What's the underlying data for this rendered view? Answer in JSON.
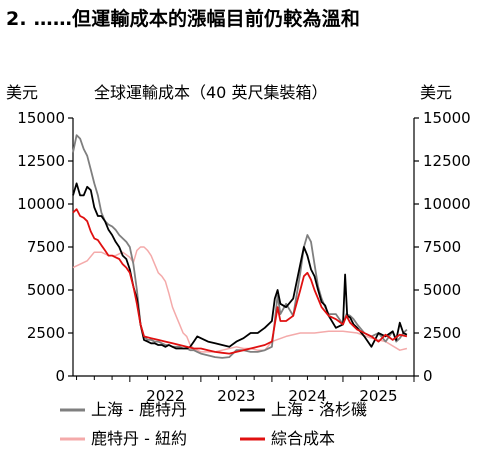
{
  "heading": "2. ……但運輸成本的漲幅目前仍較為溫和",
  "chart_data": {
    "type": "line",
    "title": "全球運輸成本（40 英尺集裝箱）",
    "y_unit_left": "美元",
    "y_unit_right": "美元",
    "ylim": [
      0,
      15000
    ],
    "y_ticks": [
      0,
      2500,
      5000,
      7500,
      10000,
      12500,
      15000
    ],
    "y_tick_labels": [
      "0",
      "2500",
      "5000",
      "7500",
      "10000",
      "12500",
      "15000"
    ],
    "xlim": [
      2021.2,
      2026.0
    ],
    "x_tick_labels": [
      "2022",
      "2023",
      "2024",
      "2025"
    ],
    "x_label_positions": [
      2022.5,
      2023.5,
      2024.5,
      2025.5
    ],
    "grid": false,
    "legend_position": "bottom",
    "series": [
      {
        "name": "上海 - 鹿特丹",
        "color": "#7f7f7f",
        "x": [
          2021.2,
          2021.25,
          2021.3,
          2021.35,
          2021.4,
          2021.45,
          2021.5,
          2021.55,
          2021.6,
          2021.65,
          2021.7,
          2021.75,
          2021.8,
          2021.85,
          2021.9,
          2021.95,
          2022.0,
          2022.05,
          2022.1,
          2022.15,
          2022.2,
          2022.25,
          2022.3,
          2022.35,
          2022.4,
          2022.45,
          2022.5,
          2022.55,
          2022.6,
          2022.65,
          2022.7,
          2022.75,
          2022.8,
          2022.85,
          2022.9,
          2022.95,
          2023.0,
          2023.1,
          2023.2,
          2023.3,
          2023.4,
          2023.5,
          2023.6,
          2023.7,
          2023.8,
          2023.9,
          2024.0,
          2024.04,
          2024.08,
          2024.12,
          2024.2,
          2024.3,
          2024.4,
          2024.45,
          2024.5,
          2024.55,
          2024.6,
          2024.65,
          2024.7,
          2024.75,
          2024.8,
          2024.9,
          2025.0,
          2025.05,
          2025.1,
          2025.15,
          2025.2,
          2025.3,
          2025.4,
          2025.5,
          2025.6,
          2025.7,
          2025.75,
          2025.8,
          2025.85,
          2025.9
        ],
        "y": [
          13000,
          14000,
          13800,
          13200,
          12800,
          12000,
          11200,
          10500,
          9500,
          9000,
          8800,
          8700,
          8500,
          8200,
          8000,
          7800,
          7500,
          6500,
          5000,
          3000,
          2300,
          2100,
          2100,
          2000,
          2000,
          1900,
          1800,
          1800,
          1700,
          1700,
          1700,
          1600,
          1600,
          1500,
          1500,
          1400,
          1300,
          1200,
          1100,
          1050,
          1100,
          1500,
          1500,
          1400,
          1400,
          1500,
          1700,
          3200,
          4700,
          3600,
          4200,
          3500,
          6000,
          7500,
          8200,
          7800,
          6500,
          5200,
          4500,
          4000,
          3600,
          3600,
          3000,
          3600,
          3500,
          3300,
          3000,
          2500,
          2300,
          2500,
          2000,
          2600,
          2000,
          2200,
          2500,
          2700
        ]
      },
      {
        "name": "上海 - 洛杉磯",
        "color": "#000000",
        "x": [
          2021.2,
          2021.25,
          2021.3,
          2021.35,
          2021.4,
          2021.45,
          2021.5,
          2021.55,
          2021.6,
          2021.65,
          2021.7,
          2021.75,
          2021.8,
          2021.85,
          2021.9,
          2021.95,
          2022.0,
          2022.05,
          2022.1,
          2022.15,
          2022.2,
          2022.25,
          2022.3,
          2022.35,
          2022.4,
          2022.45,
          2022.5,
          2022.55,
          2022.6,
          2022.65,
          2022.7,
          2022.75,
          2022.8,
          2022.85,
          2022.9,
          2022.95,
          2023.0,
          2023.1,
          2023.2,
          2023.3,
          2023.4,
          2023.5,
          2023.6,
          2023.7,
          2023.8,
          2023.9,
          2024.0,
          2024.04,
          2024.08,
          2024.12,
          2024.2,
          2024.3,
          2024.4,
          2024.45,
          2024.5,
          2024.55,
          2024.6,
          2024.65,
          2024.7,
          2024.75,
          2024.8,
          2024.9,
          2025.0,
          2025.03,
          2025.06,
          2025.1,
          2025.15,
          2025.2,
          2025.3,
          2025.4,
          2025.5,
          2025.6,
          2025.7,
          2025.75,
          2025.8,
          2025.85,
          2025.9
        ],
        "y": [
          10500,
          11200,
          10500,
          10500,
          11000,
          10800,
          9800,
          9300,
          9300,
          9000,
          8500,
          8200,
          7800,
          7500,
          7000,
          6800,
          6200,
          5200,
          4500,
          3000,
          2100,
          2000,
          1900,
          1900,
          1800,
          1800,
          1700,
          1800,
          1700,
          1600,
          1600,
          1600,
          1600,
          1700,
          2000,
          2300,
          2200,
          2000,
          1900,
          1800,
          1700,
          2000,
          2200,
          2500,
          2500,
          2800,
          3200,
          4500,
          5000,
          4200,
          4000,
          4500,
          6500,
          7500,
          7000,
          6200,
          5800,
          5000,
          4300,
          4100,
          3500,
          2800,
          3000,
          5900,
          3500,
          3400,
          3000,
          2800,
          2300,
          1700,
          2500,
          2300,
          2600,
          2100,
          3100,
          2500,
          2400
        ]
      },
      {
        "name": "鹿特丹 - 紐約",
        "color": "#f4aaaa",
        "x": [
          2021.2,
          2021.3,
          2021.4,
          2021.5,
          2021.6,
          2021.7,
          2021.8,
          2021.9,
          2022.0,
          2022.05,
          2022.1,
          2022.15,
          2022.2,
          2022.25,
          2022.3,
          2022.35,
          2022.4,
          2022.45,
          2022.5,
          2022.55,
          2022.6,
          2022.65,
          2022.7,
          2022.75,
          2022.8,
          2022.85,
          2022.9,
          2022.95,
          2023.0,
          2023.1,
          2023.2,
          2023.3,
          2023.4,
          2023.5,
          2023.6,
          2023.7,
          2023.8,
          2023.9,
          2024.0,
          2024.2,
          2024.4,
          2024.6,
          2024.8,
          2025.0,
          2025.2,
          2025.4,
          2025.6,
          2025.8,
          2025.9
        ],
        "y": [
          6300,
          6500,
          6700,
          7200,
          7200,
          7000,
          7000,
          7200,
          6900,
          6600,
          7300,
          7500,
          7500,
          7300,
          7000,
          6500,
          6000,
          5800,
          5500,
          4800,
          4000,
          3500,
          3000,
          2500,
          2300,
          1800,
          1600,
          1500,
          1400,
          1400,
          1400,
          1500,
          1600,
          1700,
          1600,
          1600,
          1500,
          1500,
          2000,
          2300,
          2500,
          2500,
          2600,
          2600,
          2500,
          2200,
          2000,
          1500,
          1600
        ]
      },
      {
        "name": "綜合成本",
        "color": "#e01010",
        "x": [
          2021.2,
          2021.25,
          2021.3,
          2021.35,
          2021.4,
          2021.45,
          2021.5,
          2021.55,
          2021.6,
          2021.65,
          2021.7,
          2021.75,
          2021.8,
          2021.85,
          2021.9,
          2021.95,
          2022.0,
          2022.05,
          2022.1,
          2022.15,
          2022.2,
          2022.3,
          2022.4,
          2022.5,
          2022.6,
          2022.7,
          2022.8,
          2022.9,
          2023.0,
          2023.1,
          2023.2,
          2023.3,
          2023.4,
          2023.5,
          2023.6,
          2023.7,
          2023.8,
          2023.9,
          2024.0,
          2024.04,
          2024.08,
          2024.12,
          2024.2,
          2024.3,
          2024.4,
          2024.45,
          2024.5,
          2024.55,
          2024.6,
          2024.65,
          2024.7,
          2024.8,
          2024.9,
          2025.0,
          2025.05,
          2025.1,
          2025.2,
          2025.3,
          2025.4,
          2025.5,
          2025.6,
          2025.7,
          2025.8,
          2025.9
        ],
        "y": [
          9500,
          9700,
          9300,
          9200,
          9000,
          8400,
          8000,
          7900,
          7600,
          7300,
          7000,
          7000,
          6900,
          6800,
          6500,
          6300,
          6000,
          5200,
          4200,
          3000,
          2300,
          2200,
          2100,
          2000,
          1900,
          1800,
          1700,
          1600,
          1600,
          1500,
          1400,
          1350,
          1300,
          1400,
          1500,
          1600,
          1700,
          1800,
          2000,
          3000,
          4000,
          3200,
          3200,
          3500,
          5000,
          5800,
          6000,
          5600,
          5000,
          4500,
          4000,
          3500,
          3300,
          3000,
          3500,
          3100,
          2700,
          2500,
          2300,
          2000,
          2400,
          2100,
          2400,
          2300
        ]
      }
    ]
  }
}
